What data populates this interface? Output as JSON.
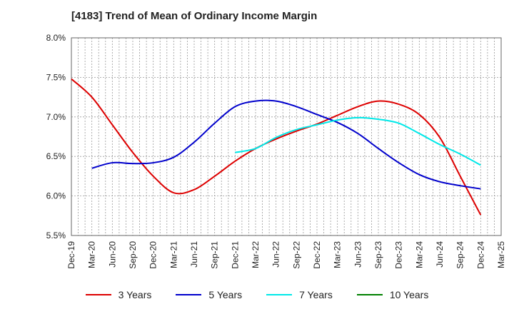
{
  "chart_data": {
    "type": "line",
    "title": "[4183]  Trend of Mean of Ordinary Income Margin",
    "xlabel": "",
    "ylabel": "",
    "x_ticks": [
      "Dec-19",
      "Mar-20",
      "Jun-20",
      "Sep-20",
      "Dec-20",
      "Mar-21",
      "Jun-21",
      "Sep-21",
      "Dec-21",
      "Mar-22",
      "Jun-22",
      "Sep-22",
      "Dec-22",
      "Mar-23",
      "Jun-23",
      "Sep-23",
      "Dec-23",
      "Mar-24",
      "Jun-24",
      "Sep-24",
      "Dec-24",
      "Mar-25"
    ],
    "y_ticks": [
      "5.5%",
      "6.0%",
      "6.5%",
      "7.0%",
      "7.5%",
      "8.0%"
    ],
    "ylim": [
      5.5,
      8.0
    ],
    "grid": true,
    "legend_position": "bottom",
    "series": [
      {
        "name": "3 Years",
        "color": "#dd0000",
        "x": [
          "Dec-19",
          "Mar-20",
          "Jun-20",
          "Sep-20",
          "Dec-20",
          "Mar-21",
          "Jun-21",
          "Sep-21",
          "Dec-21",
          "Mar-22",
          "Jun-22",
          "Sep-22",
          "Dec-22",
          "Mar-23",
          "Jun-23",
          "Sep-23",
          "Dec-23",
          "Mar-24",
          "Jun-24",
          "Sep-24",
          "Dec-24"
        ],
        "values": [
          7.48,
          7.25,
          6.9,
          6.55,
          6.25,
          6.04,
          6.08,
          6.25,
          6.44,
          6.6,
          6.72,
          6.82,
          6.91,
          7.02,
          7.13,
          7.2,
          7.16,
          7.03,
          6.74,
          6.25,
          5.76
        ]
      },
      {
        "name": "5 Years",
        "color": "#0000cc",
        "x": [
          "Mar-20",
          "Jun-20",
          "Sep-20",
          "Dec-20",
          "Mar-21",
          "Jun-21",
          "Sep-21",
          "Dec-21",
          "Mar-22",
          "Jun-22",
          "Sep-22",
          "Dec-22",
          "Mar-23",
          "Jun-23",
          "Sep-23",
          "Dec-23",
          "Mar-24",
          "Jun-24",
          "Sep-24",
          "Dec-24"
        ],
        "values": [
          6.35,
          6.42,
          6.41,
          6.42,
          6.49,
          6.68,
          6.92,
          7.13,
          7.2,
          7.2,
          7.13,
          7.03,
          6.93,
          6.79,
          6.6,
          6.42,
          6.27,
          6.18,
          6.13,
          6.09
        ]
      },
      {
        "name": "7 Years",
        "color": "#00e8e8",
        "x": [
          "Dec-21",
          "Mar-22",
          "Jun-22",
          "Sep-22",
          "Dec-22",
          "Mar-23",
          "Jun-23",
          "Sep-23",
          "Dec-23",
          "Mar-24",
          "Jun-24",
          "Sep-24",
          "Dec-24"
        ],
        "values": [
          6.55,
          6.6,
          6.74,
          6.84,
          6.9,
          6.96,
          6.99,
          6.97,
          6.92,
          6.79,
          6.65,
          6.53,
          6.39
        ]
      },
      {
        "name": "10 Years",
        "color": "#008000",
        "x": [],
        "values": []
      }
    ]
  }
}
